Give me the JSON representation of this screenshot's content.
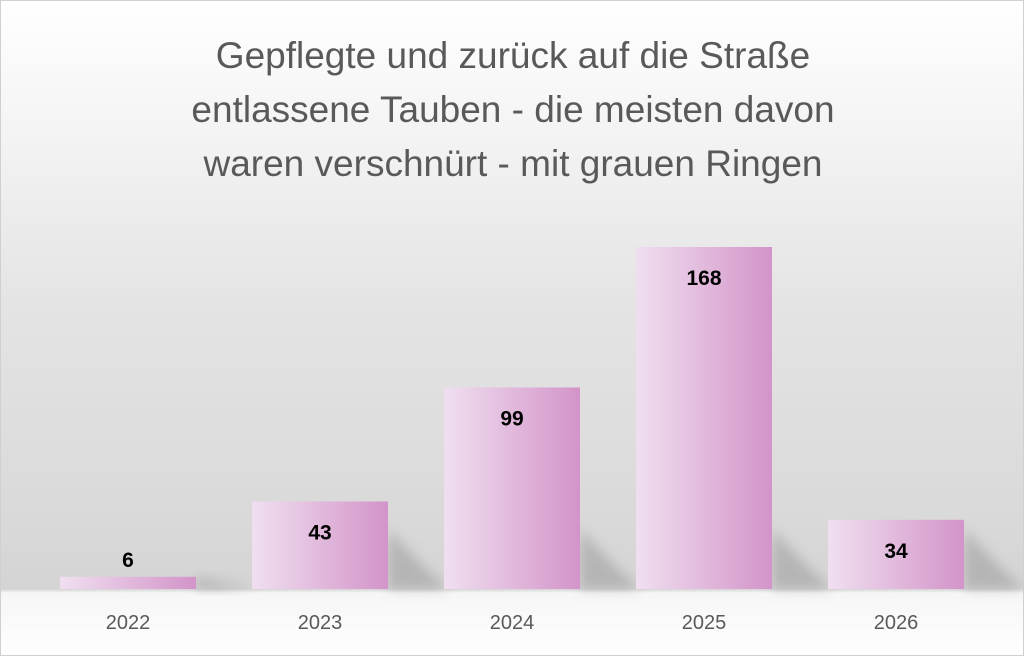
{
  "chart_data": {
    "type": "bar",
    "title_lines": [
      "Gepflegte und zurück auf die Straße",
      "entlassene Tauben - die meisten davon",
      "waren verschnürt - mit grauen Ringen"
    ],
    "categories": [
      "2022",
      "2023",
      "2024",
      "2025",
      "2026"
    ],
    "values": [
      6,
      43,
      99,
      168,
      34
    ],
    "xlabel": "",
    "ylabel": "",
    "ylim": [
      0,
      168
    ],
    "grid": false,
    "legend": "none",
    "bar_color_light": "#f0dff0",
    "bar_color_dark": "#d394c9"
  }
}
